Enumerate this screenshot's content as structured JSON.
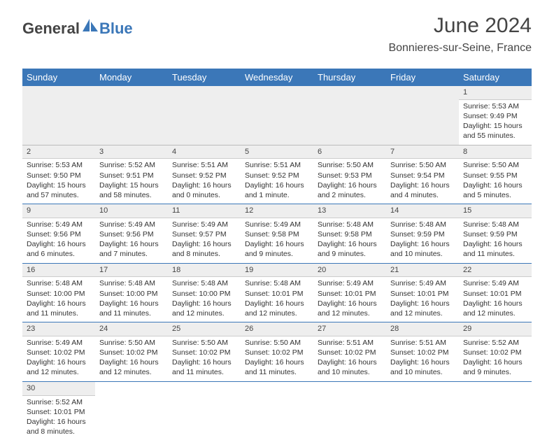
{
  "brand": {
    "part1": "General",
    "part2": "Blue"
  },
  "title": "June 2024",
  "location": "Bonnieres-sur-Seine, France",
  "colors": {
    "accent": "#3b77b8",
    "header_bg": "#3b77b8",
    "row_num_bg": "#eeeeee"
  },
  "weekdays": [
    "Sunday",
    "Monday",
    "Tuesday",
    "Wednesday",
    "Thursday",
    "Friday",
    "Saturday"
  ],
  "days": {
    "1": {
      "sunrise": "5:53 AM",
      "sunset": "9:49 PM",
      "daylight": "15 hours and 55 minutes."
    },
    "2": {
      "sunrise": "5:53 AM",
      "sunset": "9:50 PM",
      "daylight": "15 hours and 57 minutes."
    },
    "3": {
      "sunrise": "5:52 AM",
      "sunset": "9:51 PM",
      "daylight": "15 hours and 58 minutes."
    },
    "4": {
      "sunrise": "5:51 AM",
      "sunset": "9:52 PM",
      "daylight": "16 hours and 0 minutes."
    },
    "5": {
      "sunrise": "5:51 AM",
      "sunset": "9:52 PM",
      "daylight": "16 hours and 1 minute."
    },
    "6": {
      "sunrise": "5:50 AM",
      "sunset": "9:53 PM",
      "daylight": "16 hours and 2 minutes."
    },
    "7": {
      "sunrise": "5:50 AM",
      "sunset": "9:54 PM",
      "daylight": "16 hours and 4 minutes."
    },
    "8": {
      "sunrise": "5:50 AM",
      "sunset": "9:55 PM",
      "daylight": "16 hours and 5 minutes."
    },
    "9": {
      "sunrise": "5:49 AM",
      "sunset": "9:56 PM",
      "daylight": "16 hours and 6 minutes."
    },
    "10": {
      "sunrise": "5:49 AM",
      "sunset": "9:56 PM",
      "daylight": "16 hours and 7 minutes."
    },
    "11": {
      "sunrise": "5:49 AM",
      "sunset": "9:57 PM",
      "daylight": "16 hours and 8 minutes."
    },
    "12": {
      "sunrise": "5:49 AM",
      "sunset": "9:58 PM",
      "daylight": "16 hours and 9 minutes."
    },
    "13": {
      "sunrise": "5:48 AM",
      "sunset": "9:58 PM",
      "daylight": "16 hours and 9 minutes."
    },
    "14": {
      "sunrise": "5:48 AM",
      "sunset": "9:59 PM",
      "daylight": "16 hours and 10 minutes."
    },
    "15": {
      "sunrise": "5:48 AM",
      "sunset": "9:59 PM",
      "daylight": "16 hours and 11 minutes."
    },
    "16": {
      "sunrise": "5:48 AM",
      "sunset": "10:00 PM",
      "daylight": "16 hours and 11 minutes."
    },
    "17": {
      "sunrise": "5:48 AM",
      "sunset": "10:00 PM",
      "daylight": "16 hours and 11 minutes."
    },
    "18": {
      "sunrise": "5:48 AM",
      "sunset": "10:00 PM",
      "daylight": "16 hours and 12 minutes."
    },
    "19": {
      "sunrise": "5:48 AM",
      "sunset": "10:01 PM",
      "daylight": "16 hours and 12 minutes."
    },
    "20": {
      "sunrise": "5:49 AM",
      "sunset": "10:01 PM",
      "daylight": "16 hours and 12 minutes."
    },
    "21": {
      "sunrise": "5:49 AM",
      "sunset": "10:01 PM",
      "daylight": "16 hours and 12 minutes."
    },
    "22": {
      "sunrise": "5:49 AM",
      "sunset": "10:01 PM",
      "daylight": "16 hours and 12 minutes."
    },
    "23": {
      "sunrise": "5:49 AM",
      "sunset": "10:02 PM",
      "daylight": "16 hours and 12 minutes."
    },
    "24": {
      "sunrise": "5:50 AM",
      "sunset": "10:02 PM",
      "daylight": "16 hours and 12 minutes."
    },
    "25": {
      "sunrise": "5:50 AM",
      "sunset": "10:02 PM",
      "daylight": "16 hours and 11 minutes."
    },
    "26": {
      "sunrise": "5:50 AM",
      "sunset": "10:02 PM",
      "daylight": "16 hours and 11 minutes."
    },
    "27": {
      "sunrise": "5:51 AM",
      "sunset": "10:02 PM",
      "daylight": "16 hours and 10 minutes."
    },
    "28": {
      "sunrise": "5:51 AM",
      "sunset": "10:02 PM",
      "daylight": "16 hours and 10 minutes."
    },
    "29": {
      "sunrise": "5:52 AM",
      "sunset": "10:02 PM",
      "daylight": "16 hours and 9 minutes."
    },
    "30": {
      "sunrise": "5:52 AM",
      "sunset": "10:01 PM",
      "daylight": "16 hours and 8 minutes."
    }
  },
  "layout": {
    "first_weekday_index": 6,
    "num_days": 30
  },
  "labels": {
    "sunrise": "Sunrise:",
    "sunset": "Sunset:",
    "daylight": "Daylight:"
  }
}
